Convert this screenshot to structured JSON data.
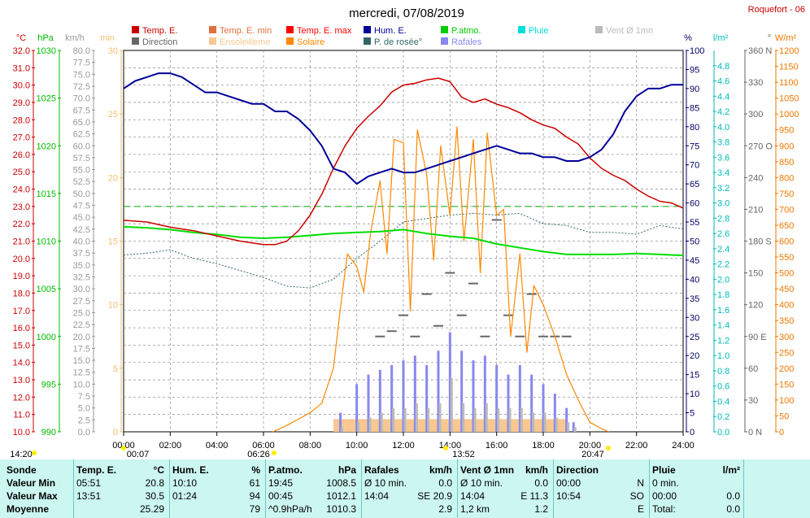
{
  "title": "mercredi, 07/08/2019",
  "station": "Roquefort - 06",
  "legend": [
    {
      "label": "Temp. E.",
      "color": "#cc0000"
    },
    {
      "label": "Temp. E. min",
      "color": "#e07040"
    },
    {
      "label": "Temp. E. max",
      "color": "#ff0000"
    },
    {
      "label": "Hum. E.",
      "color": "#000099"
    },
    {
      "label": "P.atmo.",
      "color": "#00cc00"
    },
    {
      "label": "Pluie",
      "color": "#00dddd"
    },
    {
      "label": "Vent Ø 1mn",
      "color": "#bbbbbb"
    },
    {
      "label": "Direction",
      "color": "#666666"
    },
    {
      "label": "Ensoleilleme",
      "color": "#f8c890"
    },
    {
      "label": "Solaire",
      "color": "#ff8800"
    },
    {
      "label": "P. de rosée°",
      "color": "#336666"
    },
    {
      "label": "Rafales",
      "color": "#8888ee"
    }
  ],
  "axes": {
    "temp": {
      "unit": "°C",
      "color": "#cc0000",
      "ticks": [
        "10.0",
        "11.0",
        "12.0",
        "13.0",
        "14.0",
        "15.0",
        "16.0",
        "17.0",
        "18.0",
        "19.0",
        "20.0",
        "21.0",
        "22.0",
        "23.0",
        "24.0",
        "25.0",
        "26.0",
        "27.0",
        "28.0",
        "29.0",
        "30.0",
        "31.0",
        "32.0"
      ]
    },
    "pressure": {
      "unit": "hPa",
      "color": "#00bb00",
      "ticks": [
        "990",
        "995",
        "1000",
        "1005",
        "1010",
        "1015",
        "1020",
        "1025",
        "1030"
      ]
    },
    "wind": {
      "unit": "km/h",
      "color": "#999999",
      "ticks": [
        "0.0",
        "2.5",
        "5.0",
        "7.5",
        "10.0",
        "12.5",
        "15.0",
        "17.5",
        "20.0",
        "22.5",
        "25.0",
        "27.5",
        "30.0",
        "32.5",
        "35.0",
        "37.5",
        "40.0",
        "42.5",
        "45.0",
        "47.5",
        "50.0",
        "52.5",
        "55.0",
        "57.5",
        "60.0",
        "62.5",
        "65.0",
        "67.5",
        "70.0",
        "72.5",
        "75.0",
        "77.5",
        "80.0"
      ]
    },
    "min": {
      "unit": "min",
      "color": "#f0c070",
      "ticks": [
        "0",
        "5",
        "10",
        "15",
        "20",
        "25",
        "30"
      ]
    },
    "hum": {
      "unit": "%",
      "color": "#000066",
      "ticks": [
        "0",
        "5",
        "10",
        "15",
        "20",
        "25",
        "30",
        "35",
        "40",
        "45",
        "50",
        "55",
        "60",
        "65",
        "70",
        "75",
        "80",
        "85",
        "90",
        "95",
        "100"
      ]
    },
    "rain": {
      "unit": "l/m²",
      "color": "#00bbbb",
      "ticks": [
        "0.0",
        "0.2",
        "0.4",
        "0.6",
        "0.8",
        "1.0",
        "1.2",
        "1.4",
        "1.6",
        "1.8",
        "2.0",
        "2.2",
        "2.4",
        "2.6",
        "2.8",
        "3.0",
        "3.2",
        "3.4",
        "3.6",
        "3.8",
        "4.0",
        "4.2",
        "4.4",
        "4.6",
        "4.8"
      ]
    },
    "dir": {
      "unit": "°",
      "color": "#666666",
      "ticks": [
        "0 N",
        "30",
        "60",
        "90 E",
        "120",
        "150",
        "180 S",
        "210",
        "240",
        "270 O",
        "300",
        "330",
        "360 N"
      ]
    },
    "solar": {
      "unit": "W/m²",
      "color": "#ee7700",
      "ticks": [
        "0",
        "50",
        "100",
        "150",
        "200",
        "250",
        "300",
        "350",
        "400",
        "450",
        "500",
        "550",
        "600",
        "650",
        "700",
        "750",
        "800",
        "850",
        "900",
        "950",
        "1000",
        "1050",
        "1100",
        "1150",
        "1200"
      ]
    }
  },
  "time_ticks": [
    "00:00",
    "02:00",
    "04:00",
    "06:00",
    "08:00",
    "10:00",
    "12:00",
    "14:00",
    "16:00",
    "18:00",
    "20:00",
    "22:00",
    "24:00"
  ],
  "time_markers": [
    {
      "label": "14:20"
    },
    {
      "label": " 00:07"
    },
    {
      "label": "06:26"
    },
    {
      "label": "13:52"
    },
    {
      "label": "20:47"
    }
  ],
  "chart_data": {
    "type": "line",
    "x_unit": "hour",
    "xlim": [
      0,
      24
    ],
    "series": [
      {
        "name": "Temp. E.",
        "axis": "temp",
        "ylim": [
          10,
          32
        ],
        "x": [
          0,
          1,
          2,
          3,
          4,
          5,
          6,
          6.5,
          7,
          7.5,
          8,
          8.5,
          9,
          9.5,
          10,
          10.5,
          11,
          11.5,
          12,
          12.5,
          13,
          13.5,
          14,
          14.5,
          15,
          15.5,
          16,
          16.5,
          17,
          17.5,
          18,
          18.5,
          19,
          19.5,
          20,
          20.5,
          21,
          21.5,
          22,
          22.5,
          23,
          23.5,
          24
        ],
        "y": [
          22.2,
          22.1,
          21.8,
          21.6,
          21.3,
          21.0,
          20.8,
          20.8,
          21.0,
          21.6,
          22.5,
          23.7,
          25.2,
          26.5,
          27.5,
          28.2,
          28.8,
          29.6,
          30.0,
          30.1,
          30.3,
          30.4,
          30.2,
          29.3,
          29.0,
          29.2,
          28.9,
          28.7,
          28.4,
          28.0,
          27.7,
          27.5,
          27.0,
          26.6,
          25.8,
          25.2,
          24.8,
          24.5,
          24.0,
          23.6,
          23.3,
          23.2,
          22.9
        ]
      },
      {
        "name": "Hum. E.",
        "axis": "hum",
        "ylim": [
          0,
          100
        ],
        "x": [
          0,
          0.5,
          1,
          1.5,
          2,
          2.5,
          3,
          3.5,
          4,
          4.5,
          5,
          5.5,
          6,
          6.5,
          7,
          7.5,
          8,
          8.5,
          9,
          9.5,
          10,
          10.5,
          11,
          11.5,
          12,
          12.5,
          13,
          13.5,
          14,
          14.5,
          15,
          15.5,
          16,
          16.5,
          17,
          17.5,
          18,
          18.5,
          19,
          19.5,
          20,
          20.5,
          21,
          21.5,
          22,
          22.5,
          23,
          23.5,
          24
        ],
        "y": [
          90,
          92,
          93,
          94,
          94,
          93,
          91,
          89,
          89,
          88,
          87,
          86,
          86,
          84,
          84,
          82,
          79,
          75,
          69,
          68,
          65,
          67,
          68,
          69,
          68,
          68,
          69,
          70,
          71,
          72,
          73,
          74,
          75,
          74,
          73,
          73,
          72,
          72,
          71,
          71,
          72,
          74,
          78,
          84,
          88,
          90,
          90,
          91,
          91
        ]
      },
      {
        "name": "P.atmo.",
        "axis": "pressure",
        "ylim": [
          990,
          1030
        ],
        "x": [
          0,
          1,
          2,
          3,
          4,
          5,
          6,
          7,
          8,
          9,
          10,
          11,
          12,
          13,
          14,
          15,
          16,
          17,
          18,
          19,
          20,
          21,
          22,
          23,
          24
        ],
        "y": [
          1011.5,
          1011.4,
          1011.2,
          1010.9,
          1010.7,
          1010.4,
          1010.3,
          1010.4,
          1010.6,
          1010.8,
          1010.9,
          1011.0,
          1011.2,
          1010.8,
          1010.5,
          1010.3,
          1009.7,
          1009.3,
          1008.9,
          1008.6,
          1008.6,
          1008.6,
          1008.7,
          1008.6,
          1008.5
        ]
      },
      {
        "name": "Solaire",
        "axis": "solar",
        "ylim": [
          0,
          1200
        ],
        "x": [
          6.4,
          7,
          7.5,
          8,
          8.5,
          9,
          9.3,
          9.6,
          10,
          10.3,
          10.6,
          11,
          11.3,
          11.6,
          12,
          12.3,
          12.6,
          13,
          13.3,
          13.6,
          14,
          14.3,
          14.6,
          15,
          15.3,
          15.6,
          16,
          16.3,
          16.6,
          17,
          17.3,
          17.6,
          18,
          18.5,
          19,
          19.5,
          20,
          20.5,
          20.8
        ],
        "y": [
          0,
          20,
          40,
          60,
          90,
          200,
          390,
          560,
          520,
          440,
          630,
          790,
          560,
          920,
          910,
          380,
          950,
          810,
          540,
          900,
          680,
          960,
          600,
          920,
          500,
          940,
          680,
          700,
          300,
          560,
          250,
          460,
          400,
          300,
          180,
          100,
          30,
          10,
          0
        ]
      },
      {
        "name": "P. de rosée°",
        "axis": "temp",
        "ylim": [
          10,
          32
        ],
        "x": [
          0,
          1,
          2,
          3,
          4,
          5,
          6,
          7,
          8,
          9,
          10,
          11,
          12,
          13,
          14,
          15,
          16,
          17,
          18,
          19,
          20,
          21,
          22,
          23,
          24
        ],
        "y": [
          20.2,
          20.3,
          20.5,
          20.0,
          19.7,
          19.3,
          18.9,
          18.4,
          18.3,
          18.8,
          20.0,
          21.0,
          22.1,
          22.3,
          22.5,
          22.6,
          22.5,
          22.6,
          22.0,
          21.9,
          21.5,
          21.5,
          21.4,
          21.9,
          21.7
        ]
      },
      {
        "name": "Rafales",
        "axis": "wind",
        "ylim": [
          0,
          80
        ],
        "x": [
          9.3,
          10,
          10.5,
          11,
          11.5,
          12,
          12.5,
          13,
          13.5,
          14,
          14.5,
          15,
          15.5,
          16,
          16.5,
          17,
          17.5,
          18,
          18.5,
          19,
          19.3
        ],
        "y": [
          4,
          10,
          12,
          13,
          14,
          15,
          16,
          14,
          17,
          20.9,
          17,
          15,
          16,
          14,
          12,
          14,
          12,
          10,
          8,
          5,
          2
        ]
      },
      {
        "name": "Vent Ø 1mn",
        "axis": "wind",
        "ylim": [
          0,
          80
        ],
        "x": [
          9.3,
          10,
          10.5,
          11,
          11.5,
          12,
          12.5,
          13,
          13.5,
          14,
          14.5,
          15,
          15.5,
          16,
          16.5,
          17,
          17.5,
          18,
          18.5,
          19,
          19.3
        ],
        "y": [
          1,
          2,
          3,
          4,
          5,
          5,
          6,
          5,
          6,
          11.3,
          6,
          5,
          6,
          5,
          5,
          5,
          4,
          4,
          3,
          2,
          1
        ]
      },
      {
        "name": "Direction",
        "axis": "dir",
        "ylim": [
          0,
          360
        ],
        "x": [
          11.0,
          11.5,
          12,
          12.5,
          13,
          13.5,
          14,
          14.5,
          15,
          15.5,
          16,
          16.5,
          17,
          17.5,
          18,
          18.5,
          19
        ],
        "y": [
          90,
          95,
          110,
          90,
          130,
          100,
          150,
          110,
          140,
          90,
          200,
          110,
          90,
          130,
          90,
          90,
          90
        ]
      },
      {
        "name": "Ensoleilleme",
        "axis": "min",
        "ylim": [
          0,
          30
        ],
        "x": [
          9,
          9.3,
          9.5,
          10,
          10.5,
          11,
          11.5,
          12,
          12.5,
          13,
          13.5,
          14,
          14.5,
          15,
          15.5,
          16,
          16.5,
          17,
          17.5,
          18,
          18.5,
          19
        ],
        "y": [
          1,
          1,
          1,
          1,
          1,
          1,
          1,
          1,
          1,
          1,
          1,
          1,
          1,
          1,
          1,
          1,
          1,
          1,
          1,
          1,
          1,
          1
        ]
      }
    ],
    "reference_line": {
      "axis": "temp",
      "y": 23.0,
      "color": "#00aa00"
    }
  },
  "stats": {
    "headers": [
      {
        "label": "Sonde",
        "unit": ""
      },
      {
        "label": "Temp. E.",
        "unit": "°C"
      },
      {
        "label": "Hum. E.",
        "unit": "%"
      },
      {
        "label": "P.atmo.",
        "unit": "hPa"
      },
      {
        "label": "Rafales",
        "unit": "km/h"
      },
      {
        "label": "Vent Ø 1mn",
        "unit": "km/h"
      },
      {
        "label": "Direction",
        "unit": ""
      },
      {
        "label": "Pluie",
        "unit": "l/m²"
      }
    ],
    "rows": [
      {
        "label": "Valeur Min",
        "cells": [
          [
            "05:51",
            "20.8"
          ],
          [
            "10:10",
            "61"
          ],
          [
            "19:45",
            "1008.5"
          ],
          [
            "Ø 10 min.",
            "0.0"
          ],
          [
            "Ø 10 min.",
            "0.0"
          ],
          [
            "00:00",
            "N"
          ],
          [
            "0 min.",
            ""
          ]
        ]
      },
      {
        "label": "Valeur Max",
        "cells": [
          [
            "13:51",
            "30.5"
          ],
          [
            "01:24",
            "94"
          ],
          [
            "00:45",
            "1012.1"
          ],
          [
            "14:04",
            "SE 20.9"
          ],
          [
            "14:04",
            "E 11.3"
          ],
          [
            "10:54",
            "SO"
          ],
          [
            "00:00",
            "0.0"
          ]
        ]
      },
      {
        "label": "Moyenne",
        "cells": [
          [
            "",
            "25.29"
          ],
          [
            "",
            "79"
          ],
          [
            "^0.9hPa/h",
            "1010.3"
          ],
          [
            "",
            "2.9"
          ],
          [
            "1,2 km",
            "1.2"
          ],
          [
            "",
            "E"
          ],
          [
            "Total:",
            "0.0"
          ]
        ]
      }
    ]
  }
}
